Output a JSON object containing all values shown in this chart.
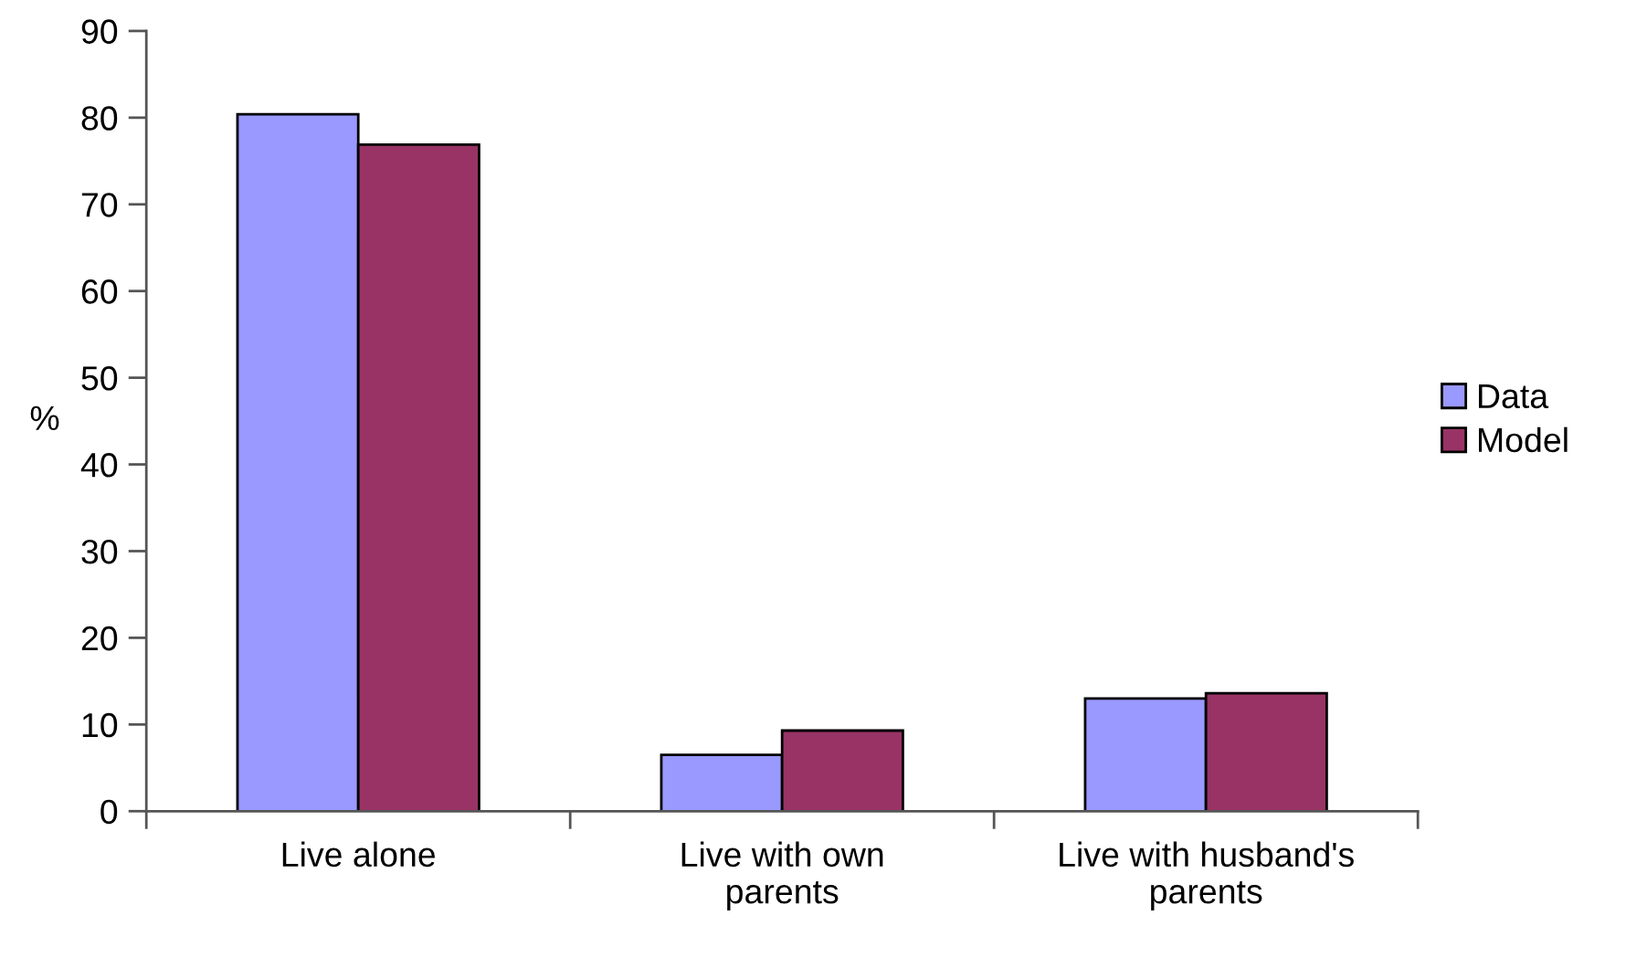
{
  "chart_data": {
    "type": "bar",
    "ylabel": "%",
    "categories": [
      "Live alone",
      "Live with own\nparents",
      "Live with husband's\nparents"
    ],
    "series": [
      {
        "name": "Data",
        "color": "#9999ff",
        "values": [
          80.4,
          6.5,
          13.0
        ]
      },
      {
        "name": "Model",
        "color": "#993366",
        "values": [
          76.9,
          9.3,
          13.6
        ]
      }
    ],
    "ylim": [
      0,
      90
    ],
    "yticks": [
      0,
      10,
      20,
      30,
      40,
      50,
      60,
      70,
      80,
      90
    ],
    "grid": false,
    "legend": "right"
  }
}
